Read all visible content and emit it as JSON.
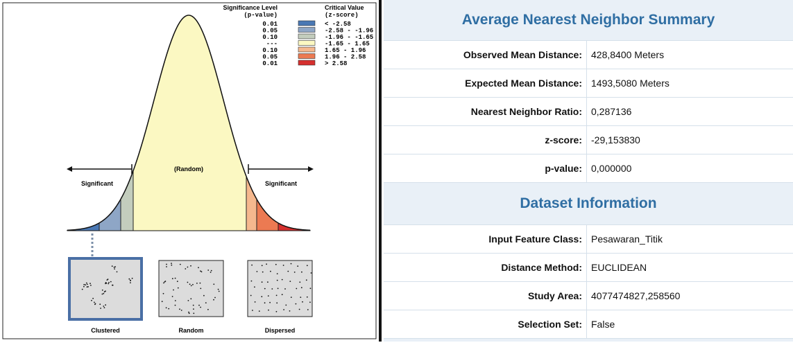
{
  "diagram": {
    "legend": {
      "significance_header": "Significance Level",
      "significance_sub": "(p-value)",
      "critical_header": "Critical Value",
      "critical_sub": "(z-score)",
      "rows": [
        {
          "p": "0.01",
          "z": "< -2.58",
          "color": "#4a78b4"
        },
        {
          "p": "0.05",
          "z": "-2.58 - -1.96",
          "color": "#8ea6c6"
        },
        {
          "p": "0.10",
          "z": "-1.96 - -1.65",
          "color": "#c3cdbd"
        },
        {
          "p": "---",
          "z": "-1.65 - 1.65",
          "color": "#fbf8c2"
        },
        {
          "p": "0.10",
          "z": "1.65 - 1.96",
          "color": "#f5b88e"
        },
        {
          "p": "0.05",
          "z": "1.96 - 2.58",
          "color": "#ec7a52"
        },
        {
          "p": "0.01",
          "z": "> 2.58",
          "color": "#d6302e"
        }
      ]
    },
    "labels": {
      "random": "(Random)",
      "significant_left": "Significant",
      "significant_right": "Significant"
    },
    "patterns": [
      "Clustered",
      "Random",
      "Dispersed"
    ]
  },
  "summary": {
    "title": "Average Nearest Neighbor Summary",
    "rows": [
      [
        "Observed Mean Distance:",
        "428,8400 Meters"
      ],
      [
        "Expected Mean Distance:",
        "1493,5080 Meters"
      ],
      [
        "Nearest Neighbor Ratio:",
        "0,287136"
      ],
      [
        "z-score:",
        "-29,153830"
      ],
      [
        "p-value:",
        "0,000000"
      ]
    ]
  },
  "dataset": {
    "title": "Dataset Information",
    "rows": [
      [
        "Input Feature Class:",
        "Pesawaran_Titik"
      ],
      [
        "Distance Method:",
        "EUCLIDEAN"
      ],
      [
        "Study Area:",
        "4077474827,258560"
      ],
      [
        "Selection Set:",
        "False"
      ]
    ]
  }
}
